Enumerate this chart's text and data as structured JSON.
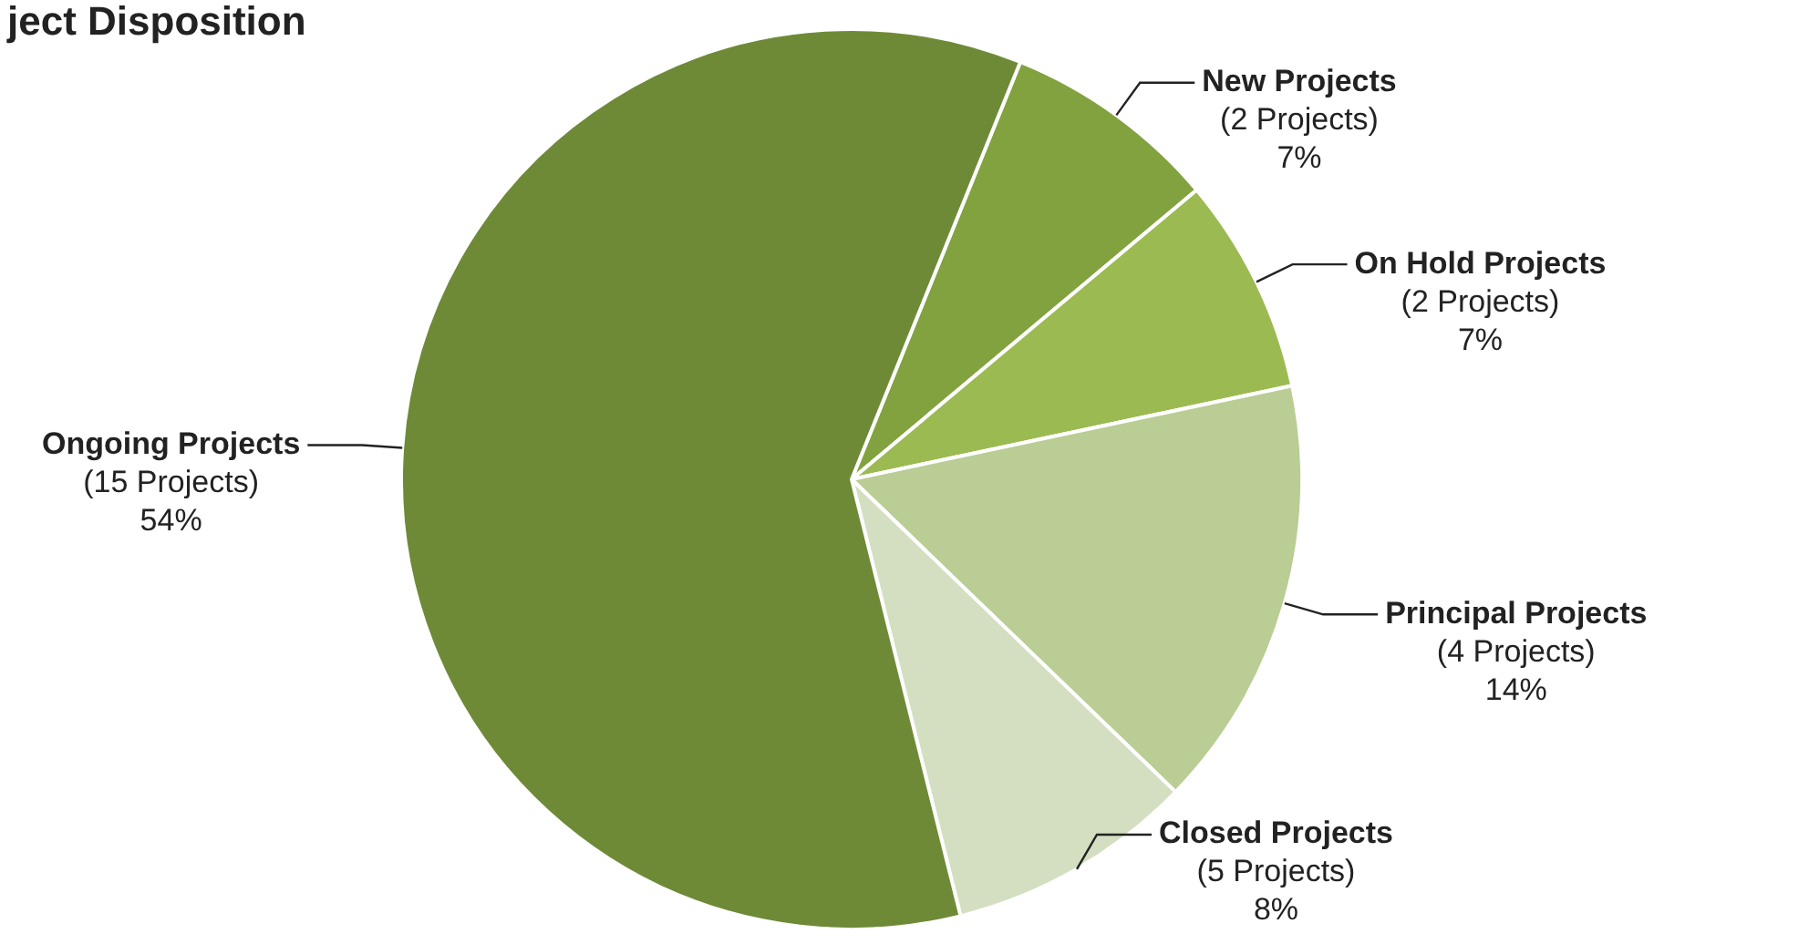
{
  "chart_data": {
    "type": "pie",
    "title": "ject Disposition",
    "categories": [
      "New Projects",
      "On Hold Projects",
      "Principal Projects",
      "Closed Projects",
      "Ongoing Projects"
    ],
    "values": [
      7,
      7,
      14,
      8,
      54
    ],
    "value_labels": [
      "(2 Projects)\n7%",
      "(2 Projects)\n7%",
      "(4 Projects)\n14%",
      "(5 Projects)\n8%",
      "(15 Projects)\n54%"
    ],
    "colors": [
      "#82a23f",
      "#9bbb52",
      "#b9cd94",
      "#d3dfc0",
      "#6e8a37"
    ],
    "legend": false
  }
}
